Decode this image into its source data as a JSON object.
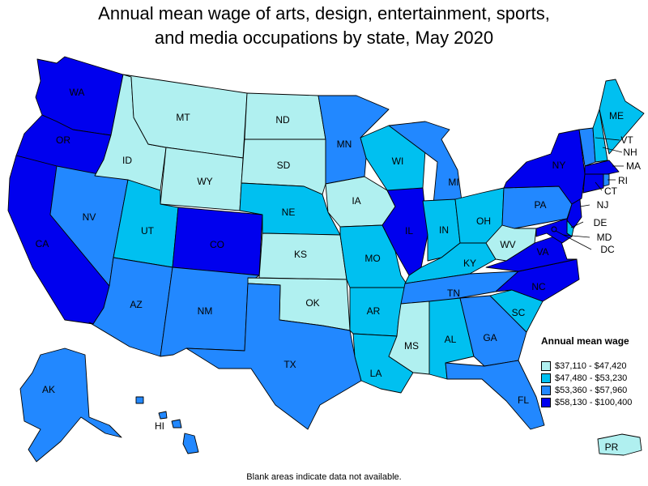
{
  "title": {
    "line1": "Annual mean wage of arts, design, entertainment, sports,",
    "line2": "and media occupations by state, May 2020"
  },
  "colors": {
    "bin1": "#b0f0f0",
    "bin2": "#00c0f0",
    "bin3": "#2288ff",
    "bin4": "#0000ee"
  },
  "legend": {
    "title": "Annual mean wage",
    "items": [
      {
        "label": "$37,110 - $47,420",
        "color": "#b0f0f0"
      },
      {
        "label": "$47,480 - $53,230",
        "color": "#00c0f0"
      },
      {
        "label": "$53,360 - $57,960",
        "color": "#2288ff"
      },
      {
        "label": "$58,130 - $100,400",
        "color": "#0000ee"
      }
    ]
  },
  "footnote": "Blank areas indicate data not available.",
  "states": [
    {
      "abbr": "WA",
      "bin": 4
    },
    {
      "abbr": "OR",
      "bin": 4
    },
    {
      "abbr": "CA",
      "bin": 4
    },
    {
      "abbr": "NV",
      "bin": 3
    },
    {
      "abbr": "ID",
      "bin": 1
    },
    {
      "abbr": "MT",
      "bin": 1
    },
    {
      "abbr": "WY",
      "bin": 1
    },
    {
      "abbr": "UT",
      "bin": 2
    },
    {
      "abbr": "AZ",
      "bin": 3
    },
    {
      "abbr": "CO",
      "bin": 4
    },
    {
      "abbr": "NM",
      "bin": 3
    },
    {
      "abbr": "ND",
      "bin": 1
    },
    {
      "abbr": "SD",
      "bin": 1
    },
    {
      "abbr": "NE",
      "bin": 2
    },
    {
      "abbr": "KS",
      "bin": 1
    },
    {
      "abbr": "OK",
      "bin": 1
    },
    {
      "abbr": "TX",
      "bin": 3
    },
    {
      "abbr": "MN",
      "bin": 3
    },
    {
      "abbr": "IA",
      "bin": 1
    },
    {
      "abbr": "MO",
      "bin": 2
    },
    {
      "abbr": "AR",
      "bin": 2
    },
    {
      "abbr": "LA",
      "bin": 2
    },
    {
      "abbr": "WI",
      "bin": 2
    },
    {
      "abbr": "IL",
      "bin": 4
    },
    {
      "abbr": "MI",
      "bin": 3
    },
    {
      "abbr": "IN",
      "bin": 2
    },
    {
      "abbr": "OH",
      "bin": 2
    },
    {
      "abbr": "KY",
      "bin": 2
    },
    {
      "abbr": "TN",
      "bin": 3
    },
    {
      "abbr": "MS",
      "bin": 1
    },
    {
      "abbr": "AL",
      "bin": 2
    },
    {
      "abbr": "GA",
      "bin": 3
    },
    {
      "abbr": "FL",
      "bin": 3
    },
    {
      "abbr": "SC",
      "bin": 2
    },
    {
      "abbr": "NC",
      "bin": 4
    },
    {
      "abbr": "VA",
      "bin": 4
    },
    {
      "abbr": "WV",
      "bin": 1
    },
    {
      "abbr": "PA",
      "bin": 3
    },
    {
      "abbr": "NY",
      "bin": 4
    },
    {
      "abbr": "VT",
      "bin": 3
    },
    {
      "abbr": "NH",
      "bin": 2
    },
    {
      "abbr": "ME",
      "bin": 2
    },
    {
      "abbr": "MA",
      "bin": 4
    },
    {
      "abbr": "RI",
      "bin": 3
    },
    {
      "abbr": "CT",
      "bin": 4
    },
    {
      "abbr": "NJ",
      "bin": 4
    },
    {
      "abbr": "DE",
      "bin": 2
    },
    {
      "abbr": "MD",
      "bin": 4
    },
    {
      "abbr": "DC",
      "bin": 4
    },
    {
      "abbr": "AK",
      "bin": 3
    },
    {
      "abbr": "HI",
      "bin": 3
    },
    {
      "abbr": "PR",
      "bin": 1
    }
  ]
}
